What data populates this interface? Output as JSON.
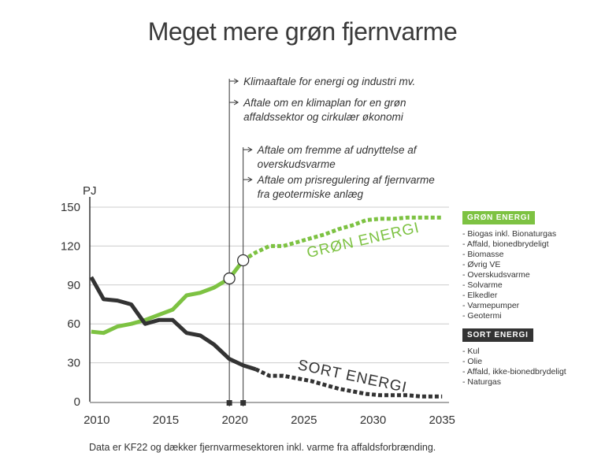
{
  "title": "Meget mere grøn fjernvarme",
  "footnote": "Data er KF22 og dækker fjernvarmesektoren inkl. varme fra affaldsforbrænding.",
  "colors": {
    "green": "#7dc242",
    "black": "#333333",
    "grid": "#cccccc"
  },
  "annotations": [
    {
      "lines": [
        "Klimaaftale for energi og industri mv."
      ],
      "year": 2019.6
    },
    {
      "lines": [
        "Aftale om en klimaplan for en grøn",
        "affaldssektor og cirkulær økonomi"
      ],
      "year": 2019.6
    },
    {
      "lines": [
        "Aftale om fremme af udnyttelse af",
        "overskudsvarme"
      ],
      "year": 2020.6
    },
    {
      "lines": [
        "Aftale om prisregulering af fjernvarme",
        "fra geotermiske anlæg"
      ],
      "year": 2020.6
    }
  ],
  "legend": [
    {
      "title": "GRØN ENERGI",
      "color": "#7dc242",
      "items": [
        "- Biogas inkl. Bionaturgas",
        "- Affald, bionedbrydeligt",
        "- Biomasse",
        "- Øvrig VE",
        "- Overskudsvarme",
        "- Solvarme",
        "- Elkedler",
        "- Varmepumper",
        "- Geotermi"
      ]
    },
    {
      "title": "SORT ENERGI",
      "color": "#333333",
      "items": [
        "- Kul",
        "- Olie",
        "- Affald, ikke-bionedbrydeligt",
        "- Naturgas"
      ]
    }
  ],
  "chart_data": {
    "type": "line",
    "ylabel": "PJ",
    "xlabel": "",
    "xlim": [
      2009.5,
      2035.5
    ],
    "ylim": [
      0,
      150
    ],
    "xticks": [
      2010,
      2015,
      2020,
      2025,
      2030,
      2035
    ],
    "yticks": [
      0,
      30,
      60,
      90,
      120,
      150
    ],
    "grid": true,
    "series": [
      {
        "name": "GRØN ENERGI",
        "color": "#7dc242",
        "historical": [
          [
            2009.6,
            54
          ],
          [
            2010.5,
            53
          ],
          [
            2011.5,
            58
          ],
          [
            2012.5,
            60
          ],
          [
            2013.5,
            63
          ],
          [
            2014.5,
            67
          ],
          [
            2015.5,
            71
          ],
          [
            2016.5,
            82
          ],
          [
            2017.5,
            84
          ],
          [
            2018.5,
            88
          ],
          [
            2019.6,
            95
          ],
          [
            2020.6,
            109
          ]
        ],
        "projection": [
          [
            2020.6,
            109
          ],
          [
            2021.5,
            115
          ],
          [
            2022.5,
            120
          ],
          [
            2023.5,
            120
          ],
          [
            2024.5,
            123
          ],
          [
            2025.5,
            126
          ],
          [
            2026.5,
            129
          ],
          [
            2027.5,
            133
          ],
          [
            2028.5,
            136
          ],
          [
            2029.5,
            140
          ],
          [
            2030.5,
            141
          ],
          [
            2031.5,
            141
          ],
          [
            2032.5,
            142
          ],
          [
            2033.5,
            142
          ],
          [
            2034.5,
            142
          ],
          [
            2035,
            142
          ]
        ]
      },
      {
        "name": "SORT ENERGI",
        "color": "#333333",
        "historical": [
          [
            2009.6,
            96
          ],
          [
            2010.5,
            79
          ],
          [
            2011.5,
            78
          ],
          [
            2012.5,
            75
          ],
          [
            2013.5,
            60
          ],
          [
            2014.5,
            63
          ],
          [
            2015.5,
            63
          ],
          [
            2016.5,
            53
          ],
          [
            2017.5,
            51
          ],
          [
            2018.5,
            44
          ],
          [
            2019.6,
            33
          ],
          [
            2020.6,
            28
          ],
          [
            2021.5,
            25
          ]
        ],
        "projection": [
          [
            2021.5,
            25
          ],
          [
            2022.5,
            20
          ],
          [
            2023.5,
            20
          ],
          [
            2024.5,
            18
          ],
          [
            2025.5,
            16
          ],
          [
            2026.5,
            13
          ],
          [
            2027.5,
            10
          ],
          [
            2028.5,
            8
          ],
          [
            2029.5,
            6
          ],
          [
            2030.5,
            5
          ],
          [
            2031.5,
            5
          ],
          [
            2032.5,
            5
          ],
          [
            2033.5,
            4
          ],
          [
            2034.5,
            4
          ],
          [
            2035,
            4
          ]
        ]
      }
    ],
    "markers": [
      {
        "year": 2019.6,
        "value": 95,
        "series": "GRØN ENERGI"
      },
      {
        "year": 2020.6,
        "value": 109,
        "series": "GRØN ENERGI"
      }
    ]
  }
}
